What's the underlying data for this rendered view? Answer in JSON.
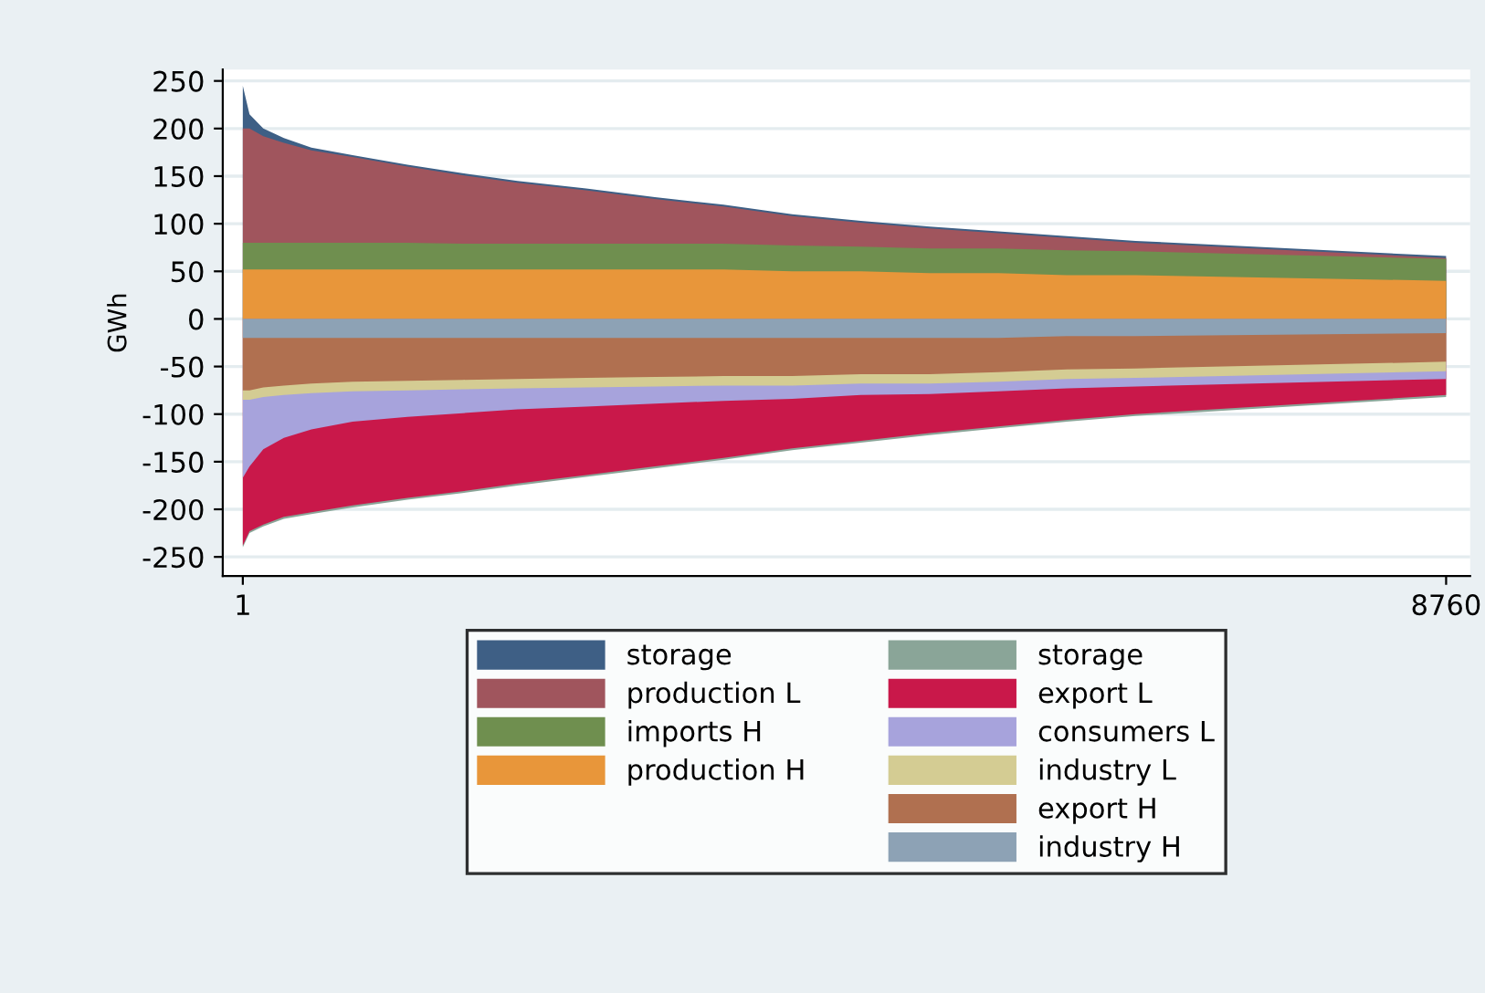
{
  "chart_data": {
    "type": "area",
    "ylabel": "GWh",
    "x": [
      1,
      50,
      150,
      300,
      500,
      800,
      1200,
      1600,
      2000,
      2500,
      3000,
      3500,
      4000,
      4500,
      5000,
      5500,
      6000,
      6500,
      8760
    ],
    "xlim": [
      -145,
      8935
    ],
    "xticks": [
      1,
      8760
    ],
    "ylim": [
      -270,
      262
    ],
    "yticks": [
      -250,
      -200,
      -150,
      -100,
      -50,
      0,
      50,
      100,
      150,
      200,
      250
    ],
    "grid": "y",
    "legend": "bottom",
    "series": [
      {
        "name": "storage",
        "color": "#3e5f85",
        "values": [
          245,
          215,
          200,
          190,
          180,
          172,
          162,
          153,
          145,
          137,
          128,
          120,
          110,
          103,
          97,
          92,
          87,
          82,
          66
        ]
      },
      {
        "name": "production L",
        "color": "#a0555d",
        "values": [
          200,
          200,
          192,
          185,
          177,
          170,
          160,
          151,
          143,
          135,
          126,
          118,
          108,
          101,
          95,
          90,
          85,
          80,
          64
        ]
      },
      {
        "name": "imports H",
        "color": "#6f8f4f",
        "values": [
          80,
          80,
          80,
          80,
          80,
          80,
          80,
          79,
          79,
          79,
          79,
          79,
          77,
          76,
          74,
          74,
          72,
          71,
          63
        ]
      },
      {
        "name": "production H",
        "color": "#e8963a",
        "values": [
          52,
          52,
          52,
          52,
          52,
          52,
          52,
          52,
          52,
          52,
          52,
          52,
          50,
          50,
          48,
          48,
          46,
          46,
          40
        ]
      },
      {
        "name": "storage",
        "color": "#8aa598",
        "values": [
          -240,
          -225,
          -218,
          -210,
          -205,
          -198,
          -190,
          -183,
          -175,
          -166,
          -157,
          -148,
          -138,
          -130,
          -122,
          -115,
          -108,
          -102,
          -82
        ]
      },
      {
        "name": "export L",
        "color": "#c9184a",
        "values": [
          -238,
          -223,
          -216,
          -208,
          -203,
          -196,
          -188,
          -181,
          -173,
          -164,
          -155,
          -146,
          -136,
          -128,
          -120,
          -113,
          -106,
          -100,
          -80
        ]
      },
      {
        "name": "consumers L",
        "color": "#a7a3dc",
        "values": [
          -167,
          -155,
          -137,
          -125,
          -116,
          -108,
          -103,
          -99,
          -95,
          -92,
          -89,
          -86,
          -84,
          -80,
          -79,
          -76,
          -73,
          -71,
          -63
        ]
      },
      {
        "name": "industry L",
        "color": "#d4cc93",
        "values": [
          -85,
          -85,
          -82,
          -80,
          -78,
          -76,
          -75,
          -74,
          -73,
          -72,
          -71,
          -70,
          -70,
          -68,
          -68,
          -66,
          -63,
          -62,
          -55
        ]
      },
      {
        "name": "export H",
        "color": "#b07050",
        "values": [
          -75,
          -75,
          -72,
          -70,
          -68,
          -66,
          -65,
          -64,
          -63,
          -62,
          -61,
          -60,
          -60,
          -58,
          -58,
          -56,
          -53,
          -52,
          -45
        ]
      },
      {
        "name": "industry H",
        "color": "#8da2b5",
        "values": [
          -20,
          -20,
          -20,
          -20,
          -20,
          -20,
          -20,
          -20,
          -20,
          -20,
          -20,
          -20,
          -20,
          -20,
          -20,
          -20,
          -18,
          -18,
          -15
        ]
      }
    ]
  }
}
